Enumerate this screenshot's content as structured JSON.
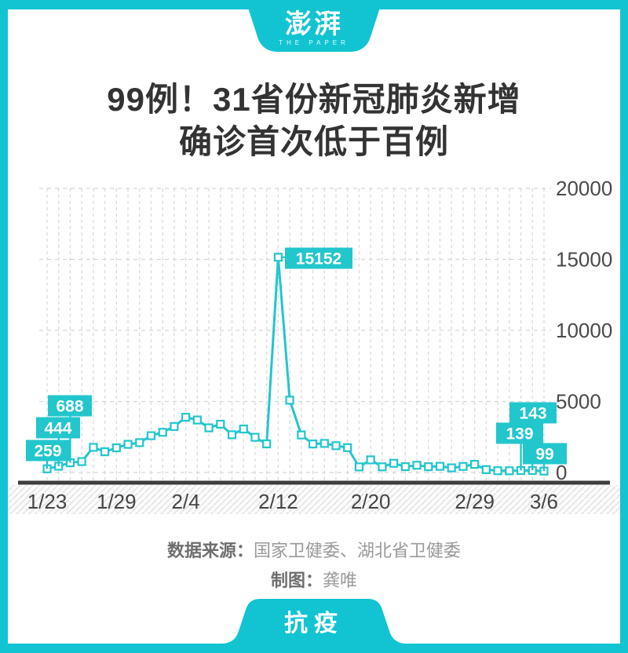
{
  "page": {
    "frame_color": "#12c4d2",
    "background": "#ffffff"
  },
  "header": {
    "logo_main": "澎湃",
    "logo_sub": "THE PAPER"
  },
  "title": {
    "line1": "99例！31省份新冠肺炎新增",
    "line2": "确诊首次低于百例"
  },
  "chart_data": {
    "type": "line",
    "title": "31省份每日新增新冠肺炎确诊病例",
    "x": [
      "1/23",
      "1/24",
      "1/25",
      "1/26",
      "1/27",
      "1/28",
      "1/29",
      "1/30",
      "1/31",
      "2/1",
      "2/2",
      "2/3",
      "2/4",
      "2/5",
      "2/6",
      "2/7",
      "2/8",
      "2/9",
      "2/10",
      "2/11",
      "2/12",
      "2/13",
      "2/14",
      "2/15",
      "2/16",
      "2/17",
      "2/18",
      "2/19",
      "2/20",
      "2/21",
      "2/22",
      "2/23",
      "2/24",
      "2/25",
      "2/26",
      "2/27",
      "2/28",
      "2/29",
      "3/1",
      "3/2",
      "3/3",
      "3/4",
      "3/5",
      "3/6"
    ],
    "values": [
      259,
      444,
      688,
      769,
      1771,
      1459,
      1737,
      1982,
      2102,
      2590,
      2829,
      3235,
      3887,
      3694,
      3143,
      3399,
      2656,
      3062,
      2478,
      2015,
      15152,
      5090,
      2641,
      2009,
      2048,
      1886,
      1749,
      394,
      889,
      397,
      648,
      409,
      508,
      406,
      433,
      327,
      427,
      573,
      202,
      125,
      119,
      139,
      143,
      99
    ],
    "x_tick_labels": [
      "1/23",
      "1/29",
      "2/4",
      "2/12",
      "2/20",
      "2/29",
      "3/6"
    ],
    "y_ticks": [
      0,
      5000,
      10000,
      15000,
      20000
    ],
    "ylim": [
      0,
      20000
    ],
    "grid": true,
    "legend": "none",
    "line_color": "#22c6cd",
    "marker": "white-square",
    "axis_color": "#3d3d3d",
    "tick_label_color": "#4a4a4a",
    "labeled_points": [
      {
        "x": "1/23",
        "value": 259
      },
      {
        "x": "1/24",
        "value": 444
      },
      {
        "x": "1/25",
        "value": 688
      },
      {
        "x": "2/12",
        "value": 15152
      },
      {
        "x": "3/4",
        "value": 139
      },
      {
        "x": "3/5",
        "value": 143
      },
      {
        "x": "3/6",
        "value": 99
      }
    ]
  },
  "footer": {
    "source_label": "数据来源：",
    "source_value": "国家卫健委、湖北省卫健委",
    "credit_label": "制图：",
    "credit_value": "龚唯"
  },
  "bottom_tab": {
    "label": "抗疫"
  }
}
